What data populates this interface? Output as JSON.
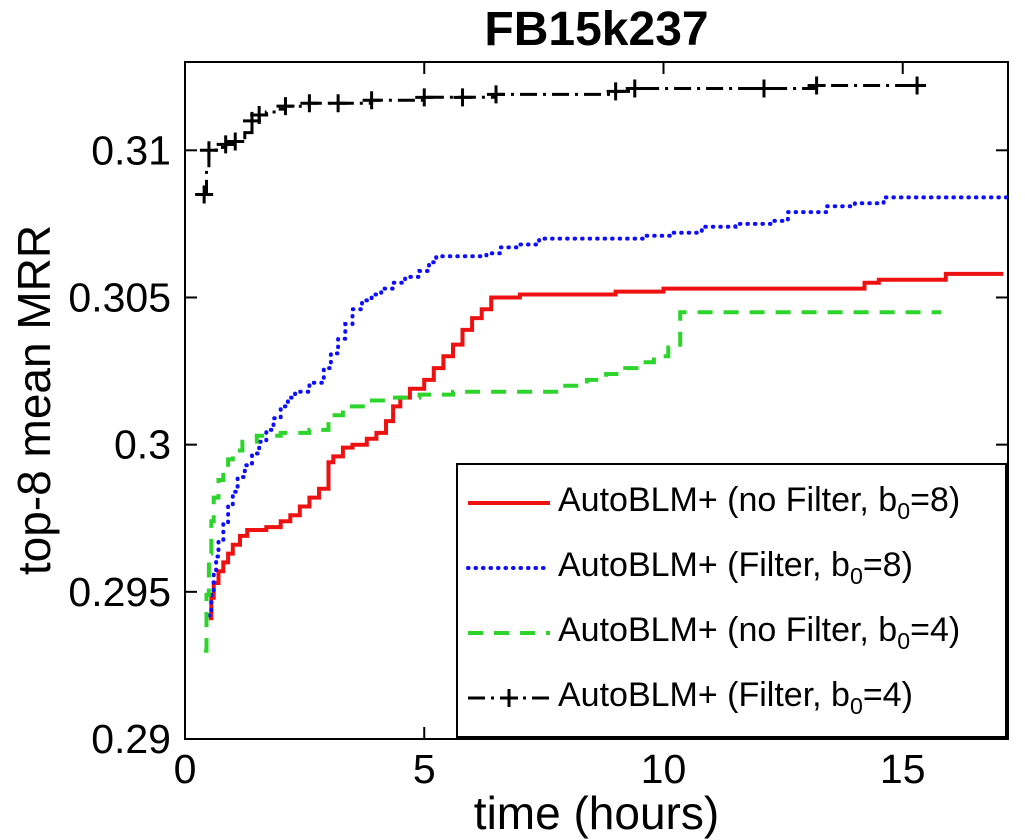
{
  "chart_data": {
    "type": "line",
    "title": "FB15k237",
    "xlabel": "time (hours)",
    "ylabel": "top-8 mean MRR",
    "xlim": [
      0,
      17.2
    ],
    "ylim": [
      0.29,
      0.313
    ],
    "grid": false,
    "background": "#ffffff",
    "axis_color": "#000000",
    "xticks": {
      "values": [
        0,
        5,
        10,
        15
      ],
      "labels": [
        "0",
        "5",
        "10",
        "15"
      ]
    },
    "yticks": {
      "values": [
        0.29,
        0.295,
        0.3,
        0.305,
        0.31
      ],
      "labels": [
        "0.29",
        "0.295",
        "0.3",
        "0.305",
        "0.31"
      ]
    },
    "legend": {
      "position": "lower-right",
      "entries": [
        {
          "pre": "AutoBLM+ (no Filter, b",
          "sub": "0",
          "post": "=8)"
        },
        {
          "pre": "AutoBLM+ (Filter, b",
          "sub": "0",
          "post": "=8)"
        },
        {
          "pre": "AutoBLM+ (no Filter, b",
          "sub": "0",
          "post": "=4)"
        },
        {
          "pre": "AutoBLM+ (Filter, b",
          "sub": "0",
          "post": "=4)"
        }
      ]
    },
    "series": [
      {
        "name": "AutoBLM+ (no Filter, b0=8)",
        "color": "#ee1111",
        "style": "solid",
        "line_width": 4,
        "step": true,
        "x": [
          0.5,
          0.55,
          0.6,
          0.7,
          0.8,
          0.9,
          1.0,
          1.15,
          1.3,
          1.7,
          2.0,
          2.2,
          2.4,
          2.6,
          2.8,
          3.0,
          3.1,
          3.3,
          3.5,
          3.8,
          4.0,
          4.2,
          4.35,
          4.5,
          4.7,
          5.0,
          5.2,
          5.4,
          5.6,
          5.8,
          6.0,
          6.2,
          6.4,
          7.0,
          8.2,
          9.0,
          10.0,
          12.0,
          14.2,
          14.5,
          15.9,
          17.1
        ],
        "y": [
          0.2941,
          0.2948,
          0.2953,
          0.2957,
          0.296,
          0.2963,
          0.2966,
          0.2969,
          0.2971,
          0.2972,
          0.2974,
          0.2976,
          0.2979,
          0.2982,
          0.2985,
          0.2994,
          0.2996,
          0.2999,
          0.3,
          0.3002,
          0.3004,
          0.3008,
          0.3013,
          0.3016,
          0.3019,
          0.3022,
          0.3026,
          0.303,
          0.3034,
          0.3039,
          0.3043,
          0.3046,
          0.305,
          0.3051,
          0.3051,
          0.3052,
          0.3053,
          0.3053,
          0.3055,
          0.3056,
          0.3058,
          0.3058
        ]
      },
      {
        "name": "AutoBLM+ (Filter, b0=8)",
        "color": "#0d0dff",
        "style": "dotted",
        "line_width": 4,
        "step": true,
        "x": [
          0.5,
          0.55,
          0.6,
          0.65,
          0.7,
          0.8,
          0.9,
          1.0,
          1.1,
          1.25,
          1.4,
          1.55,
          1.7,
          1.85,
          2.0,
          2.15,
          2.3,
          2.6,
          2.9,
          3.05,
          3.2,
          3.35,
          3.5,
          3.7,
          3.9,
          4.1,
          4.35,
          4.6,
          4.9,
          5.1,
          5.25,
          6.3,
          6.6,
          7.0,
          7.4,
          8.5,
          9.6,
          10.2,
          10.8,
          11.5,
          12.3,
          12.6,
          13.4,
          14.0,
          14.6,
          17.2
        ],
        "y": [
          0.2942,
          0.295,
          0.2957,
          0.2962,
          0.2967,
          0.2973,
          0.2979,
          0.2984,
          0.2989,
          0.2993,
          0.2997,
          0.3001,
          0.3005,
          0.3009,
          0.3013,
          0.3016,
          0.3018,
          0.3021,
          0.3026,
          0.3031,
          0.3036,
          0.3041,
          0.3046,
          0.3049,
          0.3051,
          0.3053,
          0.3055,
          0.3057,
          0.3059,
          0.3062,
          0.3064,
          0.3065,
          0.3067,
          0.3068,
          0.307,
          0.307,
          0.3071,
          0.3072,
          0.3074,
          0.3075,
          0.3076,
          0.3079,
          0.3081,
          0.3082,
          0.3084,
          0.3084
        ]
      },
      {
        "name": "AutoBLM+ (no Filter, b0=4)",
        "color": "#2cd42c",
        "style": "dashed",
        "line_width": 4,
        "step": true,
        "x": [
          0.4,
          0.45,
          0.5,
          0.55,
          0.6,
          0.7,
          0.8,
          0.9,
          1.0,
          1.2,
          1.5,
          2.0,
          2.6,
          3.0,
          3.3,
          3.8,
          4.3,
          4.9,
          5.6,
          7.6,
          7.9,
          8.4,
          8.8,
          9.2,
          9.5,
          9.8,
          10.1,
          10.35,
          15.8
        ],
        "y": [
          0.293,
          0.2949,
          0.2963,
          0.2974,
          0.2982,
          0.2988,
          0.2992,
          0.2995,
          0.2998,
          0.3001,
          0.3003,
          0.3004,
          0.3005,
          0.301,
          0.3013,
          0.3015,
          0.3016,
          0.3017,
          0.3018,
          0.3018,
          0.302,
          0.3022,
          0.3024,
          0.3026,
          0.3028,
          0.303,
          0.3033,
          0.3045,
          0.3045
        ]
      },
      {
        "name": "AutoBLM+ (Filter, b0=4)",
        "color": "#000000",
        "style": "dashdot",
        "line_width": 3,
        "step": true,
        "marker": "plus",
        "marker_x": [
          0.4,
          0.5,
          0.85,
          1.05,
          1.4,
          1.55,
          2.1,
          2.6,
          3.2,
          3.9,
          5.0,
          5.8,
          6.5,
          9.0,
          9.4,
          12.1,
          13.2,
          15.3
        ],
        "x": [
          0.4,
          0.45,
          0.5,
          0.65,
          0.85,
          1.05,
          1.25,
          1.4,
          1.55,
          1.7,
          1.9,
          2.1,
          2.6,
          3.2,
          3.9,
          4.6,
          5.0,
          5.8,
          6.5,
          8.0,
          9.0,
          9.4,
          11.0,
          12.1,
          13.2,
          14.2,
          15.3
        ],
        "y": [
          0.3085,
          0.3094,
          0.31,
          0.3101,
          0.3102,
          0.3103,
          0.3106,
          0.311,
          0.3112,
          0.3113,
          0.3114,
          0.3115,
          0.3116,
          0.3116,
          0.3117,
          0.3117,
          0.3118,
          0.3118,
          0.3119,
          0.3119,
          0.312,
          0.3121,
          0.3121,
          0.3121,
          0.3122,
          0.3122,
          0.3122
        ]
      }
    ]
  }
}
